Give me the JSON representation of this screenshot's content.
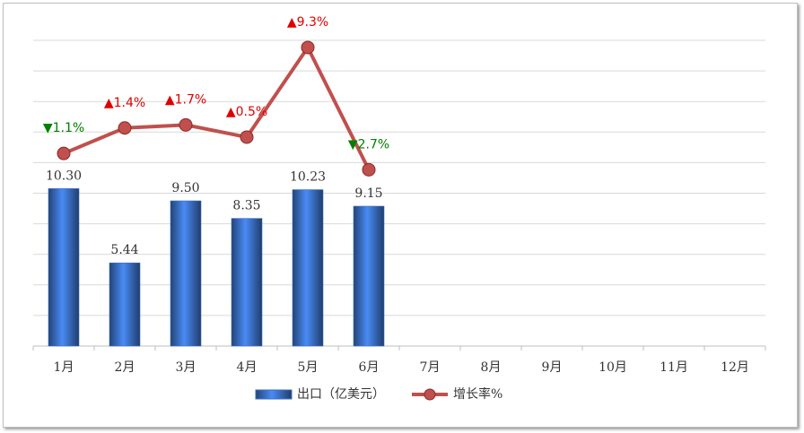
{
  "chart_data": {
    "type": "bar-line",
    "categories": [
      "1月",
      "2月",
      "3月",
      "4月",
      "5月",
      "6月",
      "7月",
      "8月",
      "9月",
      "10月",
      "11月",
      "12月"
    ],
    "series": [
      {
        "name": "出口（亿美元）",
        "type": "bar",
        "color": "#3a6fc4",
        "values": [
          10.3,
          5.44,
          9.5,
          8.35,
          10.23,
          9.15,
          null,
          null,
          null,
          null,
          null,
          null
        ],
        "value_labels": [
          "10.30",
          "5.44",
          "9.50",
          "8.35",
          "10.23",
          "9.15",
          null,
          null,
          null,
          null,
          null,
          null
        ]
      },
      {
        "name": "增长率%",
        "type": "line",
        "axis": "y2",
        "color": "#c0504d",
        "values": [
          -1.1,
          1.4,
          1.7,
          0.5,
          9.3,
          -2.7,
          null,
          null,
          null,
          null,
          null,
          null
        ],
        "value_labels": [
          "▼1.1%",
          "▲1.4%",
          "▲1.7%",
          "▲0.5%",
          "▲9.3%",
          "▼2.7%",
          null,
          null,
          null,
          null,
          null,
          null
        ]
      }
    ],
    "ylim": [
      0,
      20
    ],
    "yticks": [
      0,
      2,
      4,
      6,
      8,
      10,
      12,
      14,
      16,
      18,
      20
    ],
    "y2lim": [
      -20,
      10
    ],
    "grid": true,
    "legend": "bottom"
  }
}
